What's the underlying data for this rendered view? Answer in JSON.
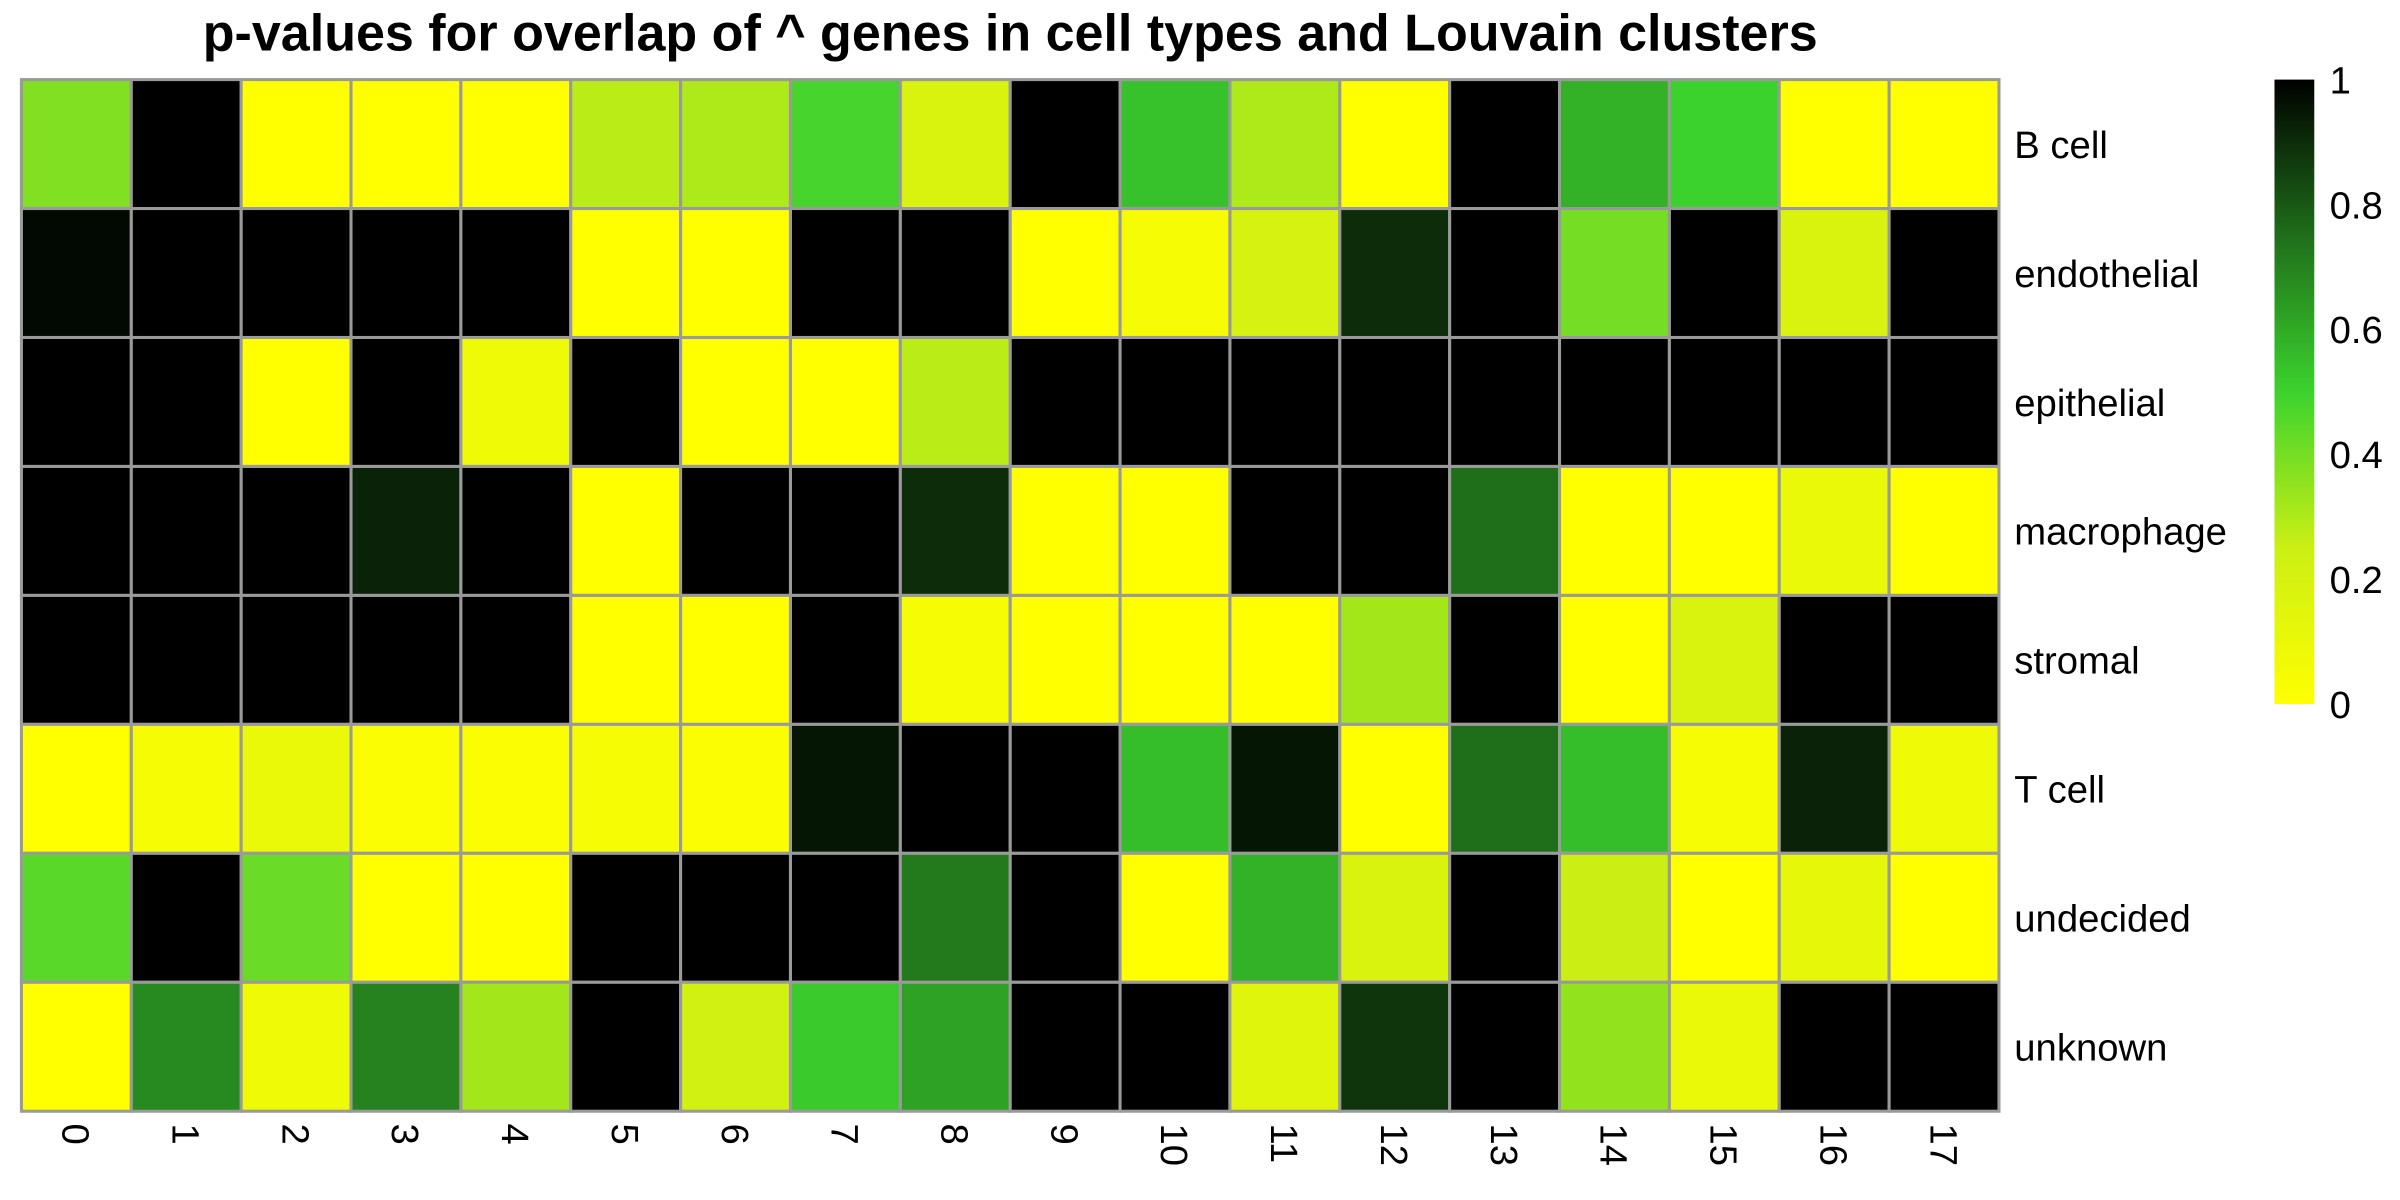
{
  "chart_data": {
    "type": "heatmap",
    "title": "p-values for overlap of ^ genes in cell types and Louvain clusters",
    "columns": [
      "0",
      "1",
      "2",
      "3",
      "4",
      "5",
      "6",
      "7",
      "8",
      "9",
      "10",
      "11",
      "12",
      "13",
      "14",
      "15",
      "16",
      "17"
    ],
    "rows": [
      "B cell",
      "endothelial",
      "epithelial",
      "macrophage",
      "stromal",
      "T cell",
      "undecided",
      "unknown"
    ],
    "values": [
      [
        0.38,
        1.0,
        0.0,
        0.0,
        0.0,
        0.28,
        0.3,
        0.48,
        0.18,
        1.0,
        0.54,
        0.3,
        0.0,
        1.0,
        0.58,
        0.5,
        0.0,
        0.0
      ],
      [
        0.98,
        1.0,
        1.0,
        1.0,
        1.0,
        0.0,
        0.0,
        1.0,
        1.0,
        0.0,
        0.05,
        0.2,
        0.9,
        1.0,
        0.4,
        1.0,
        0.18,
        1.0
      ],
      [
        1.0,
        1.0,
        0.0,
        1.0,
        0.08,
        1.0,
        0.0,
        0.0,
        0.28,
        1.0,
        1.0,
        1.0,
        1.0,
        1.0,
        1.0,
        1.0,
        1.0,
        1.0
      ],
      [
        1.0,
        1.0,
        1.0,
        0.92,
        1.0,
        0.0,
        1.0,
        1.0,
        0.9,
        0.0,
        0.0,
        1.0,
        1.0,
        0.75,
        0.0,
        0.0,
        0.1,
        0.0
      ],
      [
        1.0,
        1.0,
        1.0,
        1.0,
        1.0,
        0.0,
        0.0,
        1.0,
        0.05,
        0.0,
        0.0,
        0.0,
        0.32,
        1.0,
        0.0,
        0.18,
        1.0,
        1.0
      ],
      [
        0.0,
        0.05,
        0.1,
        0.02,
        0.02,
        0.05,
        0.02,
        0.95,
        1.0,
        1.0,
        0.55,
        0.95,
        0.0,
        0.75,
        0.55,
        0.05,
        0.92,
        0.08
      ],
      [
        0.45,
        1.0,
        0.42,
        0.0,
        0.0,
        1.0,
        1.0,
        1.0,
        0.72,
        1.0,
        0.0,
        0.58,
        0.18,
        1.0,
        0.25,
        0.0,
        0.12,
        0.0
      ],
      [
        0.0,
        0.68,
        0.08,
        0.7,
        0.32,
        1.0,
        0.22,
        0.52,
        0.62,
        1.0,
        1.0,
        0.15,
        0.88,
        1.0,
        0.35,
        0.1,
        1.0,
        1.0
      ]
    ],
    "zlim": [
      0,
      1
    ],
    "colorbar": {
      "ticks": [
        "0",
        "0.2",
        "0.4",
        "0.6",
        "0.8",
        "1"
      ],
      "colors": [
        "#ffff00",
        "#cbef14",
        "#3cd22e",
        "#1f6e1a",
        "#000000"
      ]
    },
    "legend_position": "right",
    "grid": true
  }
}
